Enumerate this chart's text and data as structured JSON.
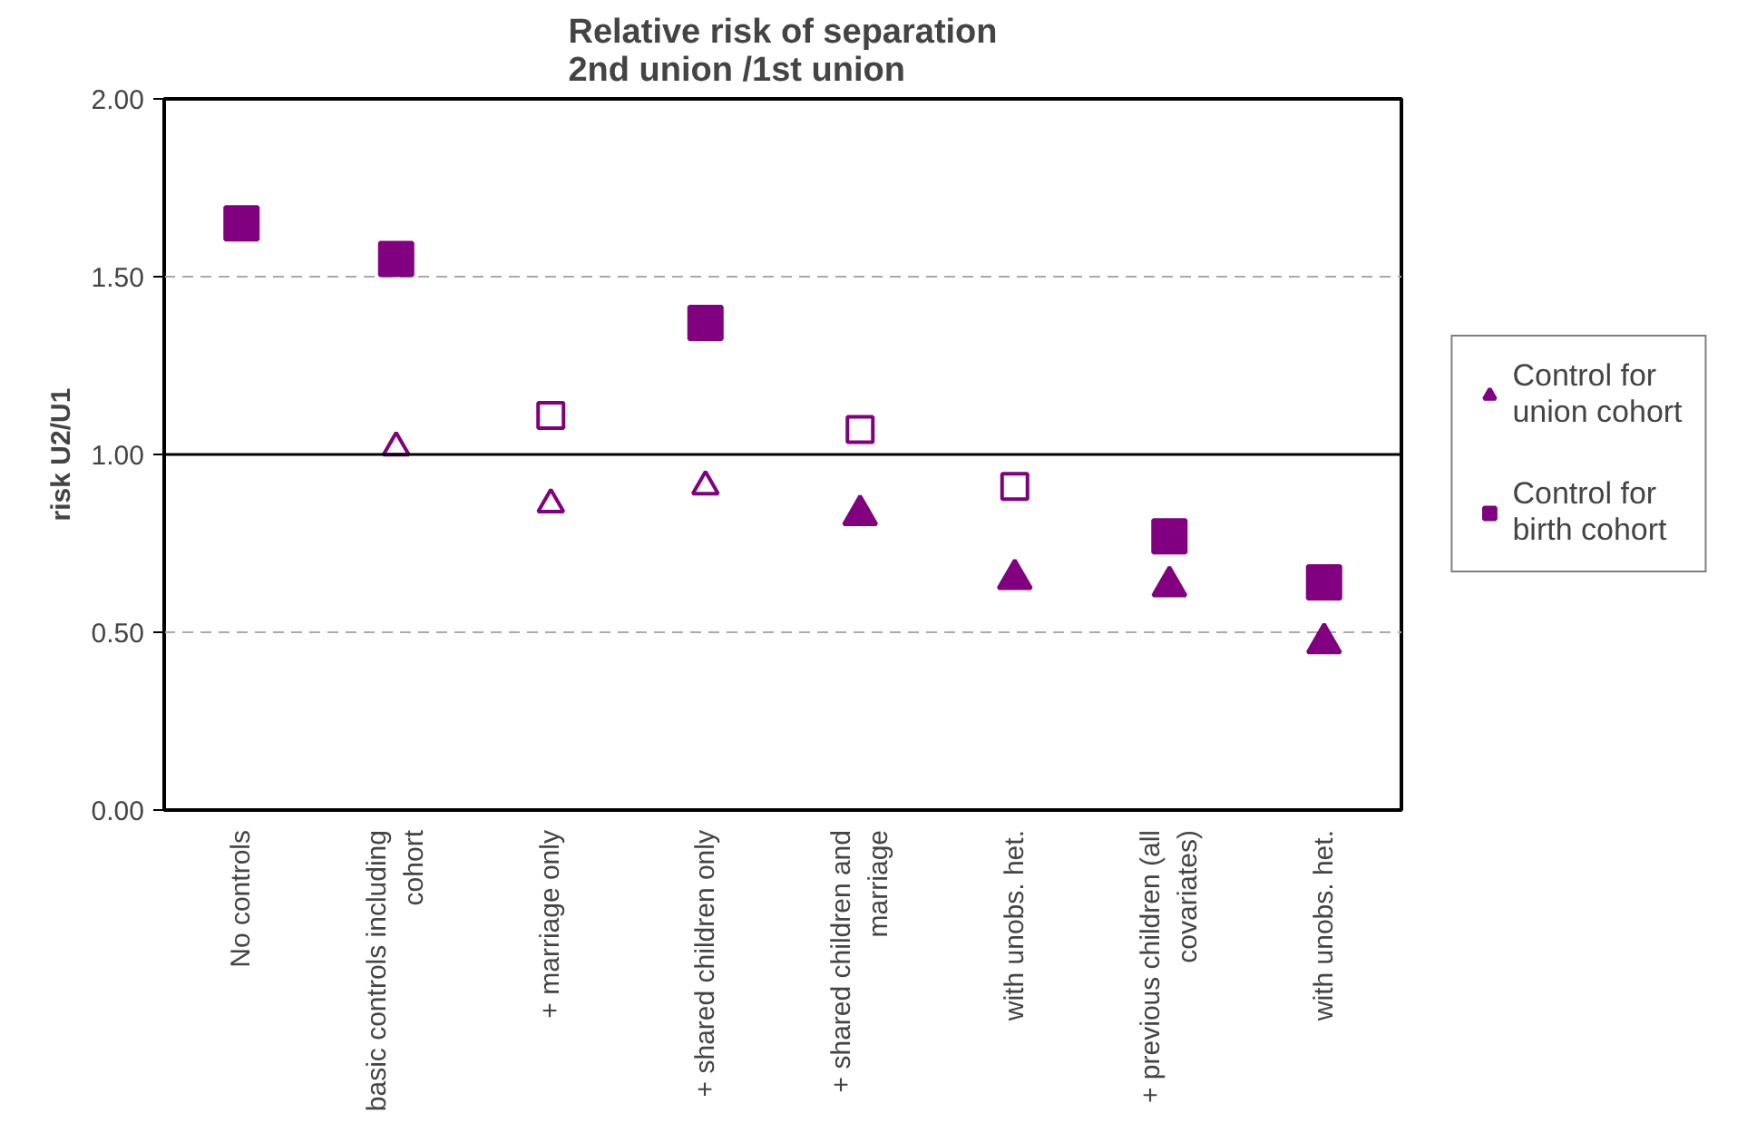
{
  "chart_data": {
    "type": "scatter",
    "title": "Relative risk of separation 2nd union /1st union",
    "ylabel": "risk U2/U1",
    "categories": [
      "No controls",
      "basic controls including cohort",
      "+ marriage only",
      "+ shared children only",
      "+ shared children and marriage",
      "with unobs. het.",
      "+ previous children (all covariates)",
      "with unobs. het."
    ],
    "series": [
      {
        "name": "Control for union cohort",
        "color": "#800080",
        "marker": "triangle",
        "values": [
          null,
          null,
          null,
          null,
          0.83,
          0.65,
          0.63,
          0.47
        ]
      },
      {
        "color": "#800080",
        "marker": "triangle",
        "values": [
          null,
          1.02,
          0.86,
          0.91,
          null,
          null,
          null,
          null
        ]
      },
      {
        "name": "Control for birth cohort",
        "color": "#800080",
        "marker": "square",
        "values": [
          1.65,
          1.55,
          null,
          1.37,
          null,
          null,
          0.77,
          0.64
        ]
      },
      {
        "color": "#800080",
        "marker": "square",
        "values": [
          null,
          null,
          1.11,
          null,
          1.07,
          0.91,
          null,
          null
        ]
      }
    ],
    "ylim": [
      0,
      2
    ],
    "yticks": [
      {
        "value": 0,
        "label": "0.00"
      },
      {
        "value": 0.5,
        "label": "0.50"
      },
      {
        "value": 1,
        "label": "1.00"
      },
      {
        "value": 1.5,
        "label": "1.50"
      },
      {
        "value": 2,
        "label": "2.00"
      }
    ],
    "ref_lines": [
      {
        "axis": "y",
        "value": 1,
        "color": "#000000",
        "line_style": "solid"
      }
    ],
    "grid": "y",
    "legend": "right"
  }
}
